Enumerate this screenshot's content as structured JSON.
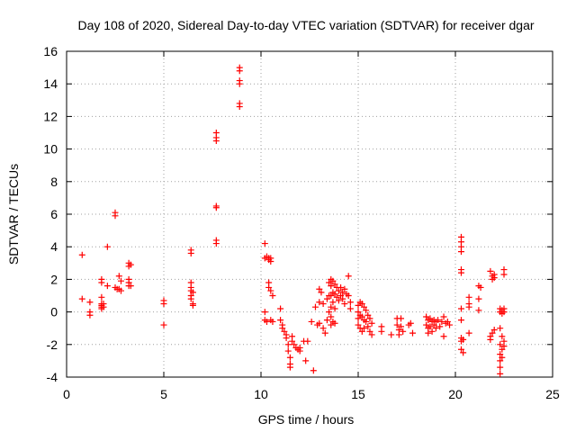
{
  "chart_data": {
    "type": "scatter",
    "title": "Day 108 of 2020, Sidereal Day-to-day VTEC variation (SDTVAR) for receiver dgar",
    "xlabel": "GPS time / hours",
    "ylabel": "SDTVAR / TECUs",
    "xlim": [
      0,
      25
    ],
    "ylim": [
      -4,
      16
    ],
    "xticks": [
      0,
      5,
      10,
      15,
      20,
      25
    ],
    "yticks": [
      -4,
      -2,
      0,
      2,
      4,
      6,
      8,
      10,
      12,
      14,
      16
    ],
    "xtick_labels": [
      "0",
      "5",
      "10",
      "15",
      "20",
      "25"
    ],
    "ytick_labels": [
      "-4",
      "-2",
      "0",
      "2",
      "4",
      "6",
      "8",
      "10",
      "12",
      "14",
      "16"
    ],
    "grid": true,
    "marker": "+",
    "color": "#ff0000",
    "series": [
      {
        "name": "SDTVAR",
        "points": [
          [
            0.8,
            3.5
          ],
          [
            0.8,
            0.8
          ],
          [
            1.2,
            0.6
          ],
          [
            1.2,
            0.0
          ],
          [
            1.2,
            -0.2
          ],
          [
            1.8,
            2.0
          ],
          [
            1.8,
            1.8
          ],
          [
            1.8,
            0.9
          ],
          [
            1.8,
            0.5
          ],
          [
            1.8,
            0.4
          ],
          [
            1.8,
            0.3
          ],
          [
            1.8,
            0.2
          ],
          [
            1.9,
            0.5
          ],
          [
            1.9,
            0.3
          ],
          [
            2.1,
            4.0
          ],
          [
            2.1,
            1.6
          ],
          [
            2.5,
            6.1
          ],
          [
            2.5,
            5.9
          ],
          [
            2.5,
            1.5
          ],
          [
            2.6,
            1.4
          ],
          [
            2.7,
            2.2
          ],
          [
            2.7,
            1.4
          ],
          [
            2.8,
            1.9
          ],
          [
            2.8,
            1.3
          ],
          [
            3.2,
            3.0
          ],
          [
            3.2,
            2.8
          ],
          [
            3.2,
            2.0
          ],
          [
            3.2,
            1.8
          ],
          [
            3.2,
            1.6
          ],
          [
            3.3,
            2.9
          ],
          [
            3.3,
            1.6
          ],
          [
            5.0,
            0.7
          ],
          [
            5.0,
            0.5
          ],
          [
            5.0,
            -0.8
          ],
          [
            6.4,
            3.8
          ],
          [
            6.4,
            3.6
          ],
          [
            6.4,
            1.8
          ],
          [
            6.4,
            1.5
          ],
          [
            6.4,
            1.3
          ],
          [
            6.4,
            1.0
          ],
          [
            6.4,
            0.8
          ],
          [
            6.5,
            1.2
          ],
          [
            6.5,
            0.5
          ],
          [
            6.5,
            0.4
          ],
          [
            7.7,
            11.0
          ],
          [
            7.7,
            10.7
          ],
          [
            7.7,
            10.5
          ],
          [
            7.7,
            6.5
          ],
          [
            7.7,
            6.4
          ],
          [
            7.7,
            4.4
          ],
          [
            7.7,
            4.2
          ],
          [
            8.9,
            15.0
          ],
          [
            8.9,
            14.8
          ],
          [
            8.9,
            14.2
          ],
          [
            8.9,
            14.0
          ],
          [
            8.9,
            12.8
          ],
          [
            8.9,
            12.6
          ],
          [
            10.2,
            4.2
          ],
          [
            10.2,
            3.3
          ],
          [
            10.3,
            3.4
          ],
          [
            10.4,
            3.3
          ],
          [
            10.4,
            3.2
          ],
          [
            10.5,
            3.3
          ],
          [
            10.5,
            3.1
          ],
          [
            10.2,
            0.0
          ],
          [
            10.2,
            -0.5
          ],
          [
            10.3,
            -0.6
          ],
          [
            10.4,
            1.8
          ],
          [
            10.4,
            1.5
          ],
          [
            10.5,
            1.3
          ],
          [
            10.6,
            1.0
          ],
          [
            10.5,
            -0.5
          ],
          [
            10.6,
            -0.6
          ],
          [
            11.0,
            0.2
          ],
          [
            11.0,
            -0.5
          ],
          [
            11.1,
            -0.8
          ],
          [
            11.1,
            -1.0
          ],
          [
            11.2,
            -1.2
          ],
          [
            11.3,
            -1.4
          ],
          [
            11.3,
            -1.6
          ],
          [
            11.4,
            -2.0
          ],
          [
            11.4,
            -2.4
          ],
          [
            11.5,
            -2.8
          ],
          [
            11.5,
            -3.2
          ],
          [
            11.5,
            -3.4
          ],
          [
            11.6,
            -1.5
          ],
          [
            11.6,
            -1.8
          ],
          [
            11.7,
            -2.0
          ],
          [
            11.8,
            -2.2
          ],
          [
            11.9,
            -2.3
          ],
          [
            12.0,
            -2.2
          ],
          [
            12.0,
            -2.4
          ],
          [
            12.2,
            -1.8
          ],
          [
            12.3,
            -3.0
          ],
          [
            12.4,
            -1.8
          ],
          [
            12.6,
            -0.6
          ],
          [
            12.7,
            -3.6
          ],
          [
            12.8,
            0.3
          ],
          [
            12.9,
            -0.8
          ],
          [
            13.0,
            1.4
          ],
          [
            13.0,
            0.6
          ],
          [
            13.0,
            -0.7
          ],
          [
            13.1,
            1.2
          ],
          [
            13.2,
            0.5
          ],
          [
            13.2,
            -1.0
          ],
          [
            13.3,
            -1.3
          ],
          [
            13.4,
            0.8
          ],
          [
            13.4,
            -0.5
          ],
          [
            13.5,
            1.8
          ],
          [
            13.5,
            1.0
          ],
          [
            13.5,
            0.0
          ],
          [
            13.6,
            2.0
          ],
          [
            13.6,
            1.6
          ],
          [
            13.6,
            1.0
          ],
          [
            13.6,
            0.3
          ],
          [
            13.6,
            -0.3
          ],
          [
            13.6,
            -0.8
          ],
          [
            13.7,
            1.9
          ],
          [
            13.7,
            1.2
          ],
          [
            13.7,
            0.6
          ],
          [
            13.7,
            -0.6
          ],
          [
            13.8,
            1.7
          ],
          [
            13.8,
            1.1
          ],
          [
            13.8,
            0.2
          ],
          [
            13.8,
            -0.7
          ],
          [
            13.9,
            1.5
          ],
          [
            13.9,
            0.9
          ],
          [
            14.0,
            1.3
          ],
          [
            14.0,
            0.7
          ],
          [
            14.1,
            1.5
          ],
          [
            14.1,
            1.0
          ],
          [
            14.2,
            1.2
          ],
          [
            14.2,
            0.8
          ],
          [
            14.3,
            1.4
          ],
          [
            14.3,
            0.5
          ],
          [
            14.4,
            1.1
          ],
          [
            14.5,
            2.2
          ],
          [
            14.5,
            1.0
          ],
          [
            14.6,
            0.6
          ],
          [
            14.6,
            0.2
          ],
          [
            15.0,
            0.4
          ],
          [
            15.0,
            0.0
          ],
          [
            15.0,
            -0.4
          ],
          [
            15.0,
            -0.8
          ],
          [
            15.1,
            0.6
          ],
          [
            15.1,
            -0.2
          ],
          [
            15.1,
            -1.0
          ],
          [
            15.2,
            0.5
          ],
          [
            15.2,
            -0.3
          ],
          [
            15.2,
            -1.2
          ],
          [
            15.3,
            0.3
          ],
          [
            15.3,
            -0.5
          ],
          [
            15.3,
            -1.0
          ],
          [
            15.4,
            0.1
          ],
          [
            15.4,
            -0.6
          ],
          [
            15.5,
            -0.2
          ],
          [
            15.5,
            -0.9
          ],
          [
            15.6,
            -0.4
          ],
          [
            15.6,
            -1.2
          ],
          [
            15.7,
            -0.7
          ],
          [
            15.7,
            -1.4
          ],
          [
            16.2,
            -0.9
          ],
          [
            16.2,
            -1.2
          ],
          [
            16.7,
            -1.4
          ],
          [
            17.0,
            -0.4
          ],
          [
            17.0,
            -0.8
          ],
          [
            17.1,
            -1.1
          ],
          [
            17.1,
            -1.4
          ],
          [
            17.2,
            -0.4
          ],
          [
            17.2,
            -0.9
          ],
          [
            17.3,
            -1.2
          ],
          [
            17.6,
            -0.8
          ],
          [
            17.7,
            -0.7
          ],
          [
            17.8,
            -1.3
          ],
          [
            18.5,
            -0.3
          ],
          [
            18.5,
            -0.8
          ],
          [
            18.6,
            -0.5
          ],
          [
            18.6,
            -1.0
          ],
          [
            18.6,
            -1.3
          ],
          [
            18.7,
            -0.4
          ],
          [
            18.7,
            -0.9
          ],
          [
            18.8,
            -0.6
          ],
          [
            18.8,
            -1.2
          ],
          [
            18.9,
            -0.5
          ],
          [
            18.9,
            -0.8
          ],
          [
            19.0,
            -0.6
          ],
          [
            19.0,
            -1.0
          ],
          [
            19.1,
            -0.5
          ],
          [
            19.2,
            -0.9
          ],
          [
            19.3,
            -0.6
          ],
          [
            19.4,
            -0.3
          ],
          [
            19.4,
            -1.5
          ],
          [
            19.5,
            -0.7
          ],
          [
            19.6,
            -0.6
          ],
          [
            19.7,
            -0.8
          ],
          [
            20.3,
            4.6
          ],
          [
            20.3,
            4.3
          ],
          [
            20.3,
            4.0
          ],
          [
            20.3,
            3.7
          ],
          [
            20.3,
            2.6
          ],
          [
            20.3,
            2.4
          ],
          [
            20.3,
            0.2
          ],
          [
            20.3,
            -0.5
          ],
          [
            20.3,
            -1.6
          ],
          [
            20.3,
            -1.8
          ],
          [
            20.3,
            -2.3
          ],
          [
            20.4,
            -2.5
          ],
          [
            20.4,
            -1.7
          ],
          [
            20.7,
            0.9
          ],
          [
            20.7,
            0.5
          ],
          [
            20.7,
            0.3
          ],
          [
            20.7,
            -1.3
          ],
          [
            21.2,
            1.6
          ],
          [
            21.2,
            0.8
          ],
          [
            21.2,
            0.1
          ],
          [
            21.3,
            1.5
          ],
          [
            21.8,
            2.5
          ],
          [
            21.8,
            -1.7
          ],
          [
            21.8,
            -1.5
          ],
          [
            21.9,
            2.2
          ],
          [
            21.9,
            2.0
          ],
          [
            21.9,
            -1.3
          ],
          [
            22.0,
            2.3
          ],
          [
            22.0,
            2.1
          ],
          [
            22.0,
            -1.1
          ],
          [
            22.3,
            0.2
          ],
          [
            22.3,
            0.0
          ],
          [
            22.3,
            -1.0
          ],
          [
            22.3,
            -2.0
          ],
          [
            22.3,
            -2.6
          ],
          [
            22.3,
            -3.0
          ],
          [
            22.3,
            -3.4
          ],
          [
            22.3,
            -3.8
          ],
          [
            22.4,
            0.1
          ],
          [
            22.4,
            -0.1
          ],
          [
            22.4,
            -1.5
          ],
          [
            22.4,
            -2.3
          ],
          [
            22.4,
            -2.8
          ],
          [
            22.5,
            2.6
          ],
          [
            22.5,
            2.3
          ],
          [
            22.5,
            0.2
          ],
          [
            22.5,
            0.0
          ],
          [
            22.5,
            -1.8
          ],
          [
            22.5,
            -2.1
          ]
        ]
      }
    ]
  }
}
